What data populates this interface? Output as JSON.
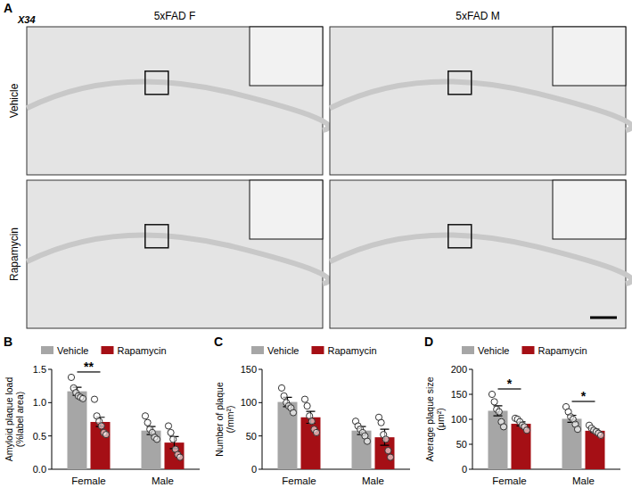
{
  "panel_a": {
    "label": "A",
    "stain": "X34",
    "columns": [
      "5xFAD F",
      "5xFAD M"
    ],
    "rows": [
      "Vehicle",
      "Rapamycin"
    ]
  },
  "chart_data": [
    {
      "type": "bar",
      "label": "B",
      "y_label": "Amyloid plaque load (%label area)",
      "categories": [
        "Female",
        "Male"
      ],
      "ylim": [
        0,
        1.5
      ],
      "yticks": [
        {
          "value": 0,
          "label": "0.0"
        },
        {
          "value": 0.5,
          "label": "0.5"
        },
        {
          "value": 1.0,
          "label": "1.0"
        },
        {
          "value": 1.5,
          "label": "1.5"
        }
      ],
      "legend": "top",
      "series": [
        {
          "name": "Vehicle",
          "color": "#a6a6a6",
          "values": [
            1.17,
            0.58
          ],
          "errors": [
            0.06,
            0.06
          ],
          "points": [
            [
              1.38,
              1.22,
              1.15,
              1.1,
              1.08,
              1.06
            ],
            [
              0.8,
              0.7,
              0.6,
              0.55,
              0.48,
              0.45
            ]
          ]
        },
        {
          "name": "Rapamycin",
          "color": "#a50f15",
          "values": [
            0.71,
            0.4
          ],
          "errors": [
            0.07,
            0.09
          ],
          "points": [
            [
              1.05,
              0.8,
              0.72,
              0.65,
              0.55,
              0.52
            ],
            [
              0.65,
              0.55,
              0.45,
              0.3,
              0.22,
              0.18
            ]
          ]
        }
      ],
      "annotations": [
        {
          "text": "**",
          "category": 0
        }
      ]
    },
    {
      "type": "bar",
      "label": "C",
      "y_label": "Number of plaque(/mm²)",
      "categories": [
        "Female",
        "Male"
      ],
      "ylim": [
        0,
        150
      ],
      "yticks": [
        0,
        50,
        100,
        150
      ],
      "legend": "top",
      "series": [
        {
          "name": "Vehicle",
          "color": "#a6a6a6",
          "values": [
            101,
            58
          ],
          "errors": [
            7,
            6
          ],
          "points": [
            [
              122,
              110,
              100,
              95,
              92,
              85
            ],
            [
              72,
              65,
              60,
              55,
              50,
              42
            ]
          ]
        },
        {
          "name": "Rapamycin",
          "color": "#a50f15",
          "values": [
            78,
            48
          ],
          "errors": [
            9,
            12
          ],
          "points": [
            [
              105,
              95,
              80,
              72,
              60,
              55
            ],
            [
              78,
              70,
              52,
              45,
              28,
              18
            ]
          ]
        }
      ],
      "annotations": []
    },
    {
      "type": "bar",
      "label": "D",
      "y_label": "Average plaque size (μm²)",
      "categories": [
        "Female",
        "Male"
      ],
      "ylim": [
        0,
        200
      ],
      "yticks": [
        0,
        50,
        100,
        150,
        200
      ],
      "legend": "top",
      "series": [
        {
          "name": "Vehicle",
          "color": "#a6a6a6",
          "values": [
            117,
            101
          ],
          "errors": [
            10,
            7
          ],
          "points": [
            [
              150,
              135,
              120,
              115,
              95,
              85
            ],
            [
              125,
              115,
              105,
              100,
              90,
              80
            ]
          ]
        },
        {
          "name": "Rapamycin",
          "color": "#a50f15",
          "values": [
            91,
            77
          ],
          "errors": [
            4,
            3
          ],
          "points": [
            [
              102,
              100,
              95,
              88,
              85,
              78
            ],
            [
              88,
              82,
              78,
              75,
              72,
              68
            ]
          ]
        }
      ],
      "annotations": [
        {
          "text": "*",
          "category": 0
        },
        {
          "text": "*",
          "category": 1
        }
      ]
    }
  ]
}
